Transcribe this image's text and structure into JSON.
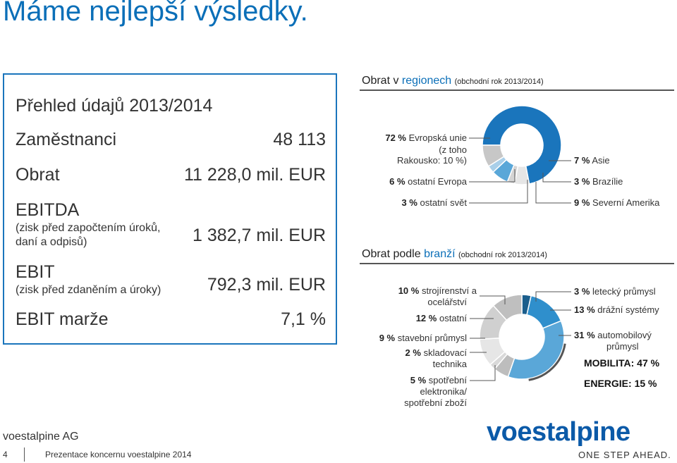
{
  "title": "Máme nejlepší výsledky.",
  "overview": {
    "heading": "Přehled údajů 2013/2014",
    "rows": [
      {
        "label": "Zaměstnanci",
        "value": "48 113"
      },
      {
        "label": "Obrat",
        "value": "11 228,0 mil. EUR"
      },
      {
        "label": "EBITDA",
        "sub": "(zisk před započtením úroků, daní a odpisů)",
        "value": "1 382,7 mil. EUR"
      },
      {
        "label": "EBIT",
        "sub": "(zisk před zdaněním a úroky)",
        "value": "792,3 mil. EUR"
      },
      {
        "label": "EBIT marže",
        "value": "7,1 %"
      }
    ]
  },
  "regions": {
    "heading_prefix": "Obrat v ",
    "heading_accent": "regionech",
    "heading_suffix": "(obchodní rok 2013/2014)",
    "labels": {
      "eu": "72 %",
      "eu_text1": "Evropská unie",
      "eu_text2": "(z toho",
      "eu_text3": "Rakousko: 10 %)",
      "eu_other": "6 %",
      "eu_other_text": "ostatní Evropa",
      "world": "3 %",
      "world_text": "ostatní svět",
      "asia": "7 %",
      "asia_text": "Asie",
      "brazil": "3 %",
      "brazil_text": "Brazílie",
      "na": "9 %",
      "na_text": "Severní Amerika"
    }
  },
  "branches": {
    "heading_prefix": "Obrat podle ",
    "heading_accent": "branží",
    "heading_suffix": "(obchodní rok 2013/2014)",
    "labels": {
      "mech": "10 %",
      "mech_text1": "strojírenství a",
      "mech_text2": "ocelářství",
      "other": "12 %",
      "other_text": "ostatní",
      "constr": "9 %",
      "constr_text": "stavební průmysl",
      "storage": "2 %",
      "storage_text1": "skladovací",
      "storage_text2": "technika",
      "consumer": "5 %",
      "consumer_text1": "spotřební",
      "consumer_text2": "elektronika/",
      "consumer_text3": "spotřební zboží",
      "aero": "3 %",
      "aero_text": "letecký průmysl",
      "rail": "13 %",
      "rail_text": "drážní systémy",
      "auto": "31 %",
      "auto_text1": "automobilový",
      "auto_text2": "průmysl",
      "mobility": "MOBILITA: 47 %",
      "energy": "ENERGIE: 15 %"
    }
  },
  "chart_data": [
    {
      "type": "pie",
      "categories": [
        "Evropská unie",
        "ostatní Evropa",
        "ostatní svět",
        "Asie",
        "Brazílie",
        "Severní Amerika"
      ],
      "values": [
        72,
        6,
        3,
        7,
        3,
        9
      ],
      "colors": [
        "#1a75bc",
        "#e6e6e6",
        "#d4d4d4",
        "#5aa7d8",
        "#a9cfe9",
        "#c7c7c7"
      ]
    },
    {
      "type": "pie",
      "categories": [
        "letecký průmysl",
        "drážní systémy",
        "automobilový průmysl",
        "spotřební elektronika/spotřební zboží",
        "skladovací technika",
        "stavební průmysl",
        "ostatní",
        "strojírenství a ocelářství"
      ],
      "values": [
        3,
        13,
        31,
        5,
        2,
        9,
        12,
        10
      ],
      "colors": [
        "#1b5e8c",
        "#2f8fcc",
        "#5aa7d8",
        "#bdbdbd",
        "#d9d9d9",
        "#e6e6e6",
        "#d0d0d0",
        "#bfbfbf"
      ]
    }
  ],
  "footer": {
    "company": "voestalpine AG",
    "page": "4",
    "text": "Prezentace koncernu voestalpine 2014"
  },
  "logo": {
    "word": "voestalpine",
    "tagline": "ONE STEP AHEAD."
  }
}
